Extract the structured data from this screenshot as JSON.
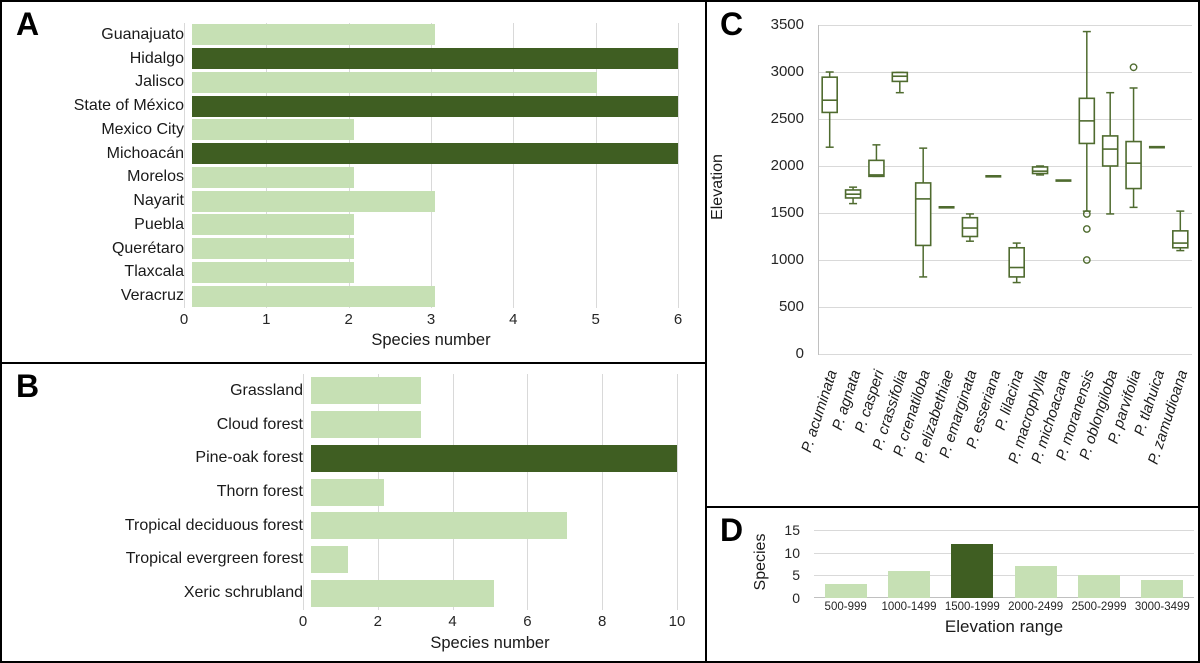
{
  "ui": {
    "panel_letters": {
      "a": "A",
      "b": "B",
      "c": "C",
      "d": "D"
    }
  },
  "colors": {
    "bar_light_green": "#c6e0b4",
    "bar_dark_green": "#3f5e22",
    "box_outline_green": "#4f6b2f",
    "gridline_gray": "#d9d9d9",
    "axis_line_gray": "#c0c0c0",
    "panel_border": "#000000"
  },
  "chart_data": [
    {
      "panel": "A",
      "type": "bar",
      "orientation": "horizontal",
      "xlabel": "Species number",
      "xlim": [
        0,
        6
      ],
      "xticks": [
        0,
        1,
        2,
        3,
        4,
        5,
        6
      ],
      "grid": true,
      "categories": [
        "Guanajuato",
        "Hidalgo",
        "Jalisco",
        "State of México",
        "Mexico City",
        "Michoacán",
        "Morelos",
        "Nayarit",
        "Puebla",
        "Querétaro",
        "Tlaxcala",
        "Veracruz"
      ],
      "values": [
        3,
        6,
        5,
        6,
        2,
        6,
        2,
        3,
        2,
        2,
        2,
        3
      ],
      "highlighted": [
        "Hidalgo",
        "State of México",
        "Michoacán"
      ]
    },
    {
      "panel": "B",
      "type": "bar",
      "orientation": "horizontal",
      "xlabel": "Species number",
      "xlim": [
        0,
        10
      ],
      "xticks": [
        0,
        2,
        4,
        6,
        8,
        10
      ],
      "grid": true,
      "categories": [
        "Grassland",
        "Cloud forest",
        "Pine-oak forest",
        "Thorn forest",
        "Tropical deciduous forest",
        "Tropical evergreen forest",
        "Xeric schrubland"
      ],
      "values": [
        3,
        3,
        10,
        2,
        7,
        1,
        5
      ],
      "highlighted": [
        "Pine-oak forest"
      ]
    },
    {
      "panel": "C",
      "type": "boxplot",
      "ylabel": "Elevation",
      "ylim": [
        0,
        3500
      ],
      "yticks": [
        0,
        500,
        1000,
        1500,
        2000,
        2500,
        3000,
        3500
      ],
      "grid": true,
      "series": [
        {
          "name": "P. acuminata",
          "whisker_low": 2200,
          "q1": 2570,
          "median": 2700,
          "q3": 2945,
          "whisker_high": 3000,
          "outliers": []
        },
        {
          "name": "P. agnata",
          "whisker_low": 1600,
          "q1": 1660,
          "median": 1700,
          "q3": 1745,
          "whisker_high": 1775,
          "outliers": []
        },
        {
          "name": "P. casperi",
          "whisker_low": 1890,
          "q1": 1890,
          "median": 1905,
          "q3": 2060,
          "whisker_high": 2225,
          "outliers": []
        },
        {
          "name": "P. crassifolia",
          "whisker_low": 2780,
          "q1": 2900,
          "median": 2955,
          "q3": 2995,
          "whisker_high": 2995,
          "outliers": []
        },
        {
          "name": "P. crenatiloba",
          "whisker_low": 820,
          "q1": 1155,
          "median": 1650,
          "q3": 1820,
          "whisker_high": 2190,
          "outliers": []
        },
        {
          "name": "P. elizabethiae",
          "value": 1560
        },
        {
          "name": "P. emarginata",
          "whisker_low": 1200,
          "q1": 1250,
          "median": 1340,
          "q3": 1450,
          "whisker_high": 1490,
          "outliers": []
        },
        {
          "name": "P. esseriana",
          "value": 1890
        },
        {
          "name": "P. lilacina",
          "whisker_low": 760,
          "q1": 820,
          "median": 920,
          "q3": 1130,
          "whisker_high": 1180,
          "outliers": []
        },
        {
          "name": "P. macrophylla",
          "whisker_low": 1905,
          "q1": 1920,
          "median": 1945,
          "q3": 1990,
          "whisker_high": 2000,
          "outliers": []
        },
        {
          "name": "P. michoacana",
          "value": 1845
        },
        {
          "name": "P. moranensis",
          "whisker_low": 1520,
          "q1": 2240,
          "median": 2480,
          "q3": 2720,
          "whisker_high": 3430,
          "outliers": [
            1490,
            1330,
            1000
          ]
        },
        {
          "name": "P. oblongiloba",
          "whisker_low": 1490,
          "q1": 2000,
          "median": 2180,
          "q3": 2320,
          "whisker_high": 2780,
          "outliers": []
        },
        {
          "name": "P. parvifolia",
          "whisker_low": 1560,
          "q1": 1760,
          "median": 2030,
          "q3": 2260,
          "whisker_high": 2830,
          "outliers": [
            3050
          ]
        },
        {
          "name": "P. tlahuica",
          "value": 2200
        },
        {
          "name": "P. zamudioana",
          "whisker_low": 1100,
          "q1": 1130,
          "median": 1180,
          "q3": 1310,
          "whisker_high": 1520,
          "outliers": []
        }
      ]
    },
    {
      "panel": "D",
      "type": "bar",
      "orientation": "vertical",
      "ylabel": "Species",
      "xlabel": "Elevation range",
      "ylim": [
        0,
        15
      ],
      "yticks": [
        0,
        5,
        10,
        15
      ],
      "grid": true,
      "categories": [
        "500-999",
        "1000-1499",
        "1500-1999",
        "2000-2499",
        "2500-2999",
        "3000-3499"
      ],
      "values": [
        3,
        6,
        12,
        7,
        5,
        4
      ],
      "highlighted": [
        "1500-1999"
      ]
    }
  ]
}
